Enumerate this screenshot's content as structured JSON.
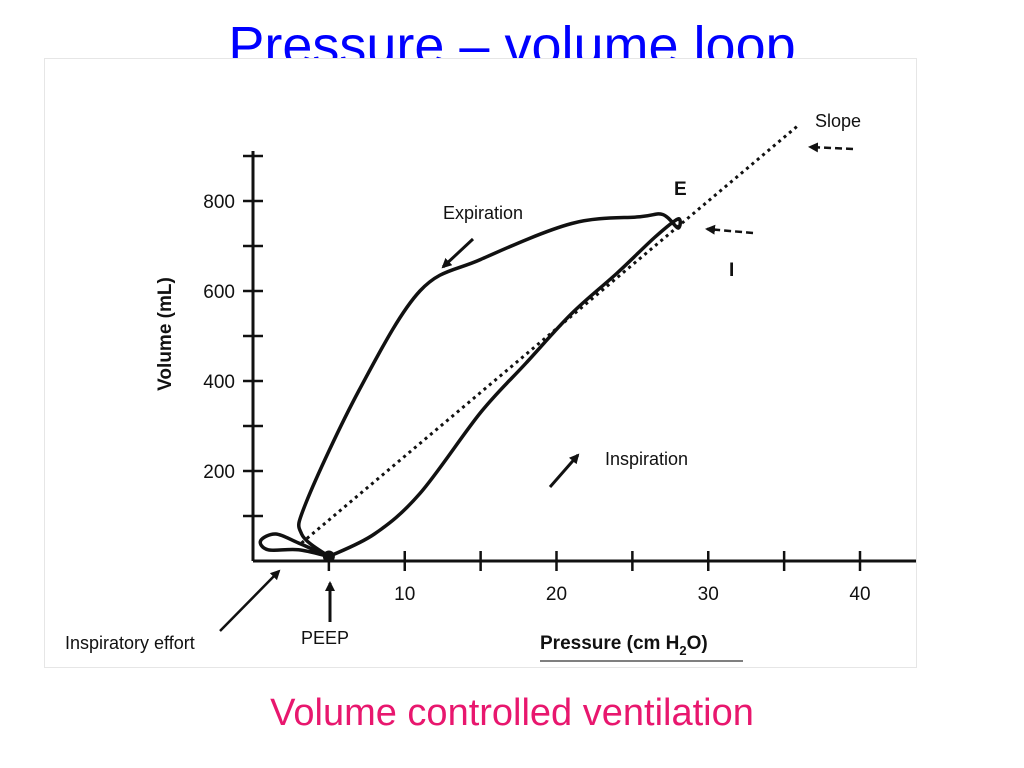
{
  "slide": {
    "title": "Pressure – volume loop",
    "subtitle": "Volume controlled ventilation",
    "title_color": "#0000ff",
    "subtitle_color": "#e8176e"
  },
  "chart_data": {
    "type": "line",
    "title": "",
    "xlabel_prefix": "Pressure (cm H",
    "xlabel_sub": "2",
    "xlabel_suffix": "O)",
    "ylabel": "Volume (mL)",
    "xlim": [
      -5,
      42
    ],
    "ylim": [
      0,
      950
    ],
    "x_ticks": [
      10,
      20,
      30,
      40
    ],
    "y_ticks": [
      200,
      400,
      600,
      800
    ],
    "grid": false,
    "legend": "none",
    "series": [
      {
        "x": [
          5,
          8,
          11,
          15,
          18,
          21,
          24,
          26.5,
          28,
          28,
          27,
          25.5,
          21,
          15,
          11,
          7,
          3.5,
          3.2,
          5
        ],
        "y": [
          10,
          60,
          150,
          330,
          440,
          550,
          640,
          720,
          760,
          740,
          770,
          765,
          750,
          670,
          600,
          380,
          130,
          60,
          10
        ]
      },
      {
        "x": [
          5,
          3,
          1,
          0.5,
          1.5,
          3,
          5
        ],
        "y": [
          10,
          25,
          25,
          45,
          60,
          40,
          10
        ]
      }
    ],
    "slope_line": {
      "x": [
        3.2,
        36
      ],
      "y": [
        40,
        970
      ]
    },
    "annotations": {
      "slope": "Slope",
      "e": "E",
      "i": "I",
      "expiration": "Expiration",
      "inspiration": "Inspiration",
      "inspiratory_effort": "Inspiratory effort",
      "peep": "PEEP"
    }
  }
}
